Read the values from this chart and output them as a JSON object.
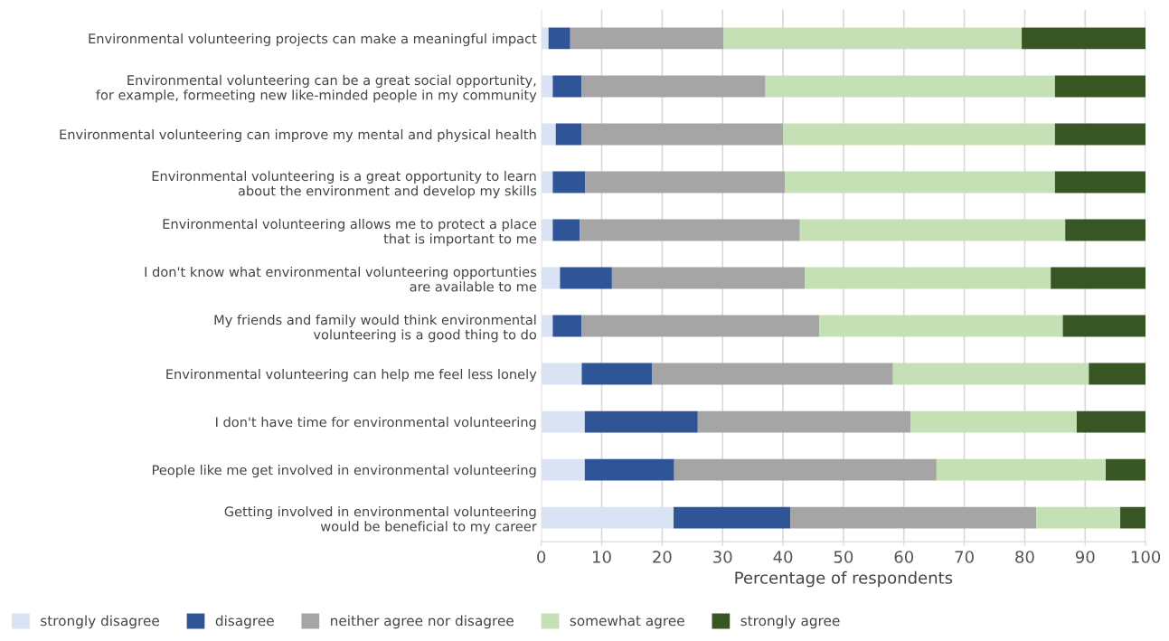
{
  "chart_data": {
    "type": "bar",
    "orientation": "horizontal",
    "stacked": true,
    "xlabel": "Percentage of respondents",
    "categories": [
      "Environmental volunteering projects can make a meaningful impact",
      "Environmental volunteering can be a great social opportunity,\nfor example, formeeting new like-minded people in my community",
      "Environmental volunteering can improve my mental and physical health",
      "Environmental volunteering is a great opportunity to learn\nabout the environment and develop my skills",
      "Environmental volunteering allows me to protect a place\nthat is important to me",
      "I don't know what environmental volunteering opportunties\nare available to me",
      "My friends and family would think environmental\nvolunteering is a good thing to do",
      "Environmental volunteering can help me feel less lonely",
      "I don't have time for environmental volunteering",
      "People like me get involved in environmental volunteering",
      "Getting involved in environmental volunteering\nwould be beneficial to my career"
    ],
    "series": [
      {
        "name": "strongly disagree",
        "color": "#dae3f3",
        "values": [
          1.2,
          1.9,
          2.4,
          1.9,
          1.9,
          3.1,
          1.9,
          6.7,
          7.2,
          7.2,
          21.9
        ]
      },
      {
        "name": "disagree",
        "color": "#2f5597",
        "values": [
          3.6,
          4.8,
          4.3,
          5.4,
          4.5,
          8.6,
          4.8,
          11.6,
          18.7,
          14.8,
          19.3
        ]
      },
      {
        "name": "neither agree nor disagree",
        "color": "#a5a5a5",
        "values": [
          25.4,
          30.4,
          33.3,
          33.0,
          36.4,
          31.9,
          39.3,
          39.9,
          35.2,
          43.4,
          40.7
        ]
      },
      {
        "name": "somewhat agree",
        "color": "#c5e0b4",
        "values": [
          49.3,
          47.9,
          45.0,
          44.7,
          43.9,
          40.7,
          40.3,
          32.4,
          27.5,
          28.0,
          13.9
        ]
      },
      {
        "name": "strongly agree",
        "color": "#375623",
        "values": [
          20.5,
          15.0,
          15.0,
          15.0,
          13.3,
          15.7,
          13.7,
          9.4,
          11.4,
          6.6,
          4.2
        ]
      }
    ],
    "xlim": [
      0,
      100
    ],
    "xticks": [
      0,
      10,
      20,
      30,
      40,
      50,
      60,
      70,
      80,
      90,
      100
    ],
    "grid": "x",
    "legend": "bottom"
  }
}
